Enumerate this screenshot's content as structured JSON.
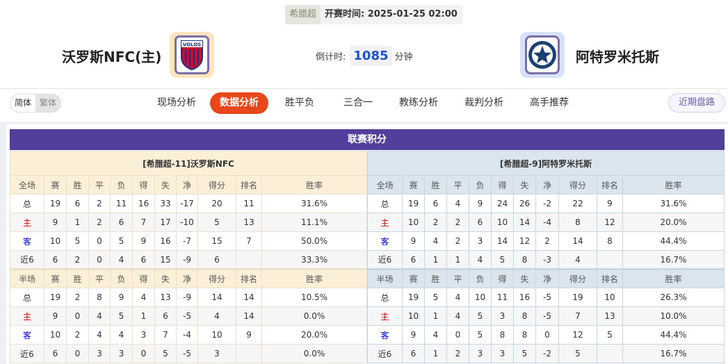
{
  "header": {
    "league": "希腊超",
    "kickoff_label": "开赛时间:",
    "kickoff_time": "2025-01-25 02:00",
    "home_team": "沃罗斯NFC(主)",
    "away_team": "阿特罗米托斯",
    "home_logo_text": "VOLOS",
    "away_logo_text": "1926",
    "countdown_label": "倒计时:",
    "countdown_value": "1085",
    "countdown_unit": "分钟",
    "home_accent": "#fde5bf",
    "away_accent": "#d6e2fb"
  },
  "nav": {
    "lang": [
      "简体",
      "繁体"
    ],
    "tabs": [
      "现场分析",
      "数据分析",
      "胜平负",
      "三合一",
      "教练分析",
      "裁判分析",
      "高手推荐"
    ],
    "active_tab": "数据分析",
    "recent_button": "近期盘路",
    "active_color": "#e8461b"
  },
  "standings": {
    "title": "联赛积分",
    "title_color": "#523f9b",
    "columns_full": [
      "全场",
      "赛",
      "胜",
      "平",
      "负",
      "得",
      "失",
      "净",
      "得分",
      "排名",
      "胜率"
    ],
    "columns_half": [
      "半场",
      "赛",
      "胜",
      "平",
      "负",
      "得",
      "失",
      "净",
      "得分",
      "排名",
      "胜率"
    ],
    "home": {
      "title": "[希腊超-11]沃罗斯NFC",
      "full": [
        [
          "总",
          "19",
          "6",
          "2",
          "11",
          "16",
          "33",
          "-17",
          "20",
          "11",
          "31.6%"
        ],
        [
          "主",
          "9",
          "1",
          "2",
          "6",
          "7",
          "17",
          "-10",
          "5",
          "13",
          "11.1%"
        ],
        [
          "客",
          "10",
          "5",
          "0",
          "5",
          "9",
          "16",
          "-7",
          "15",
          "7",
          "50.0%"
        ],
        [
          "近6",
          "6",
          "2",
          "0",
          "4",
          "6",
          "15",
          "-9",
          "6",
          "",
          "33.3%"
        ]
      ],
      "half": [
        [
          "总",
          "19",
          "2",
          "8",
          "9",
          "4",
          "13",
          "-9",
          "14",
          "14",
          "10.5%"
        ],
        [
          "主",
          "9",
          "0",
          "4",
          "5",
          "1",
          "6",
          "-5",
          "4",
          "14",
          "0.0%"
        ],
        [
          "客",
          "10",
          "2",
          "4",
          "4",
          "3",
          "7",
          "-4",
          "10",
          "9",
          "20.0%"
        ],
        [
          "近6",
          "6",
          "0",
          "3",
          "3",
          "0",
          "5",
          "-5",
          "3",
          "",
          "0.0%"
        ]
      ]
    },
    "away": {
      "title": "[希腊超-9]阿特罗米托斯",
      "full": [
        [
          "总",
          "19",
          "6",
          "4",
          "9",
          "24",
          "26",
          "-2",
          "22",
          "9",
          "31.6%"
        ],
        [
          "主",
          "10",
          "2",
          "2",
          "6",
          "10",
          "14",
          "-4",
          "8",
          "12",
          "20.0%"
        ],
        [
          "客",
          "9",
          "4",
          "2",
          "3",
          "14",
          "12",
          "2",
          "14",
          "8",
          "44.4%"
        ],
        [
          "近6",
          "6",
          "1",
          "1",
          "4",
          "5",
          "8",
          "-3",
          "4",
          "",
          "16.7%"
        ]
      ],
      "half": [
        [
          "总",
          "19",
          "5",
          "4",
          "10",
          "11",
          "16",
          "-5",
          "19",
          "10",
          "26.3%"
        ],
        [
          "主",
          "10",
          "1",
          "4",
          "5",
          "3",
          "8",
          "-5",
          "7",
          "13",
          "10.0%"
        ],
        [
          "客",
          "9",
          "4",
          "0",
          "5",
          "8",
          "8",
          "0",
          "12",
          "5",
          "44.4%"
        ],
        [
          "近6",
          "6",
          "1",
          "2",
          "3",
          "3",
          "5",
          "-2",
          "5",
          "",
          "16.7%"
        ]
      ]
    }
  }
}
